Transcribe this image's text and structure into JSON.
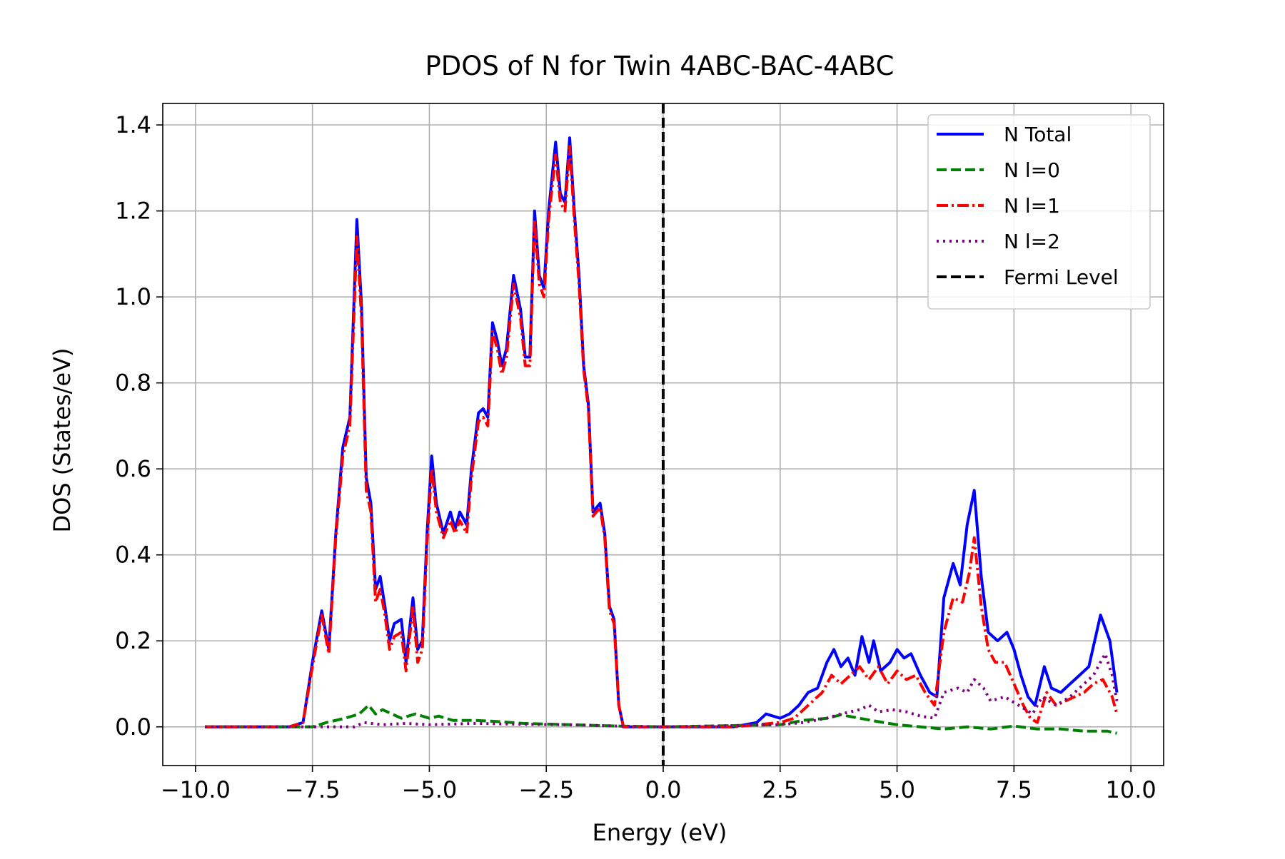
{
  "chart_data": {
    "type": "line",
    "title": "PDOS of N for Twin 4ABC-BAC-4ABC",
    "xlabel": "Energy (eV)",
    "ylabel": "DOS (States/eV)",
    "xlim": [
      -10.7,
      10.7
    ],
    "ylim": [
      -0.09,
      1.45
    ],
    "xticks": [
      -10.0,
      -7.5,
      -5.0,
      -2.5,
      0.0,
      2.5,
      5.0,
      7.5,
      10.0
    ],
    "xtick_labels": [
      "−10.0",
      "−7.5",
      "−5.0",
      "−2.5",
      "0.0",
      "2.5",
      "5.0",
      "7.5",
      "10.0"
    ],
    "yticks": [
      0.0,
      0.2,
      0.4,
      0.6,
      0.8,
      1.0,
      1.2,
      1.4
    ],
    "ytick_labels": [
      "0.0",
      "0.2",
      "0.4",
      "0.6",
      "0.8",
      "1.0",
      "1.2",
      "1.4"
    ],
    "grid": true,
    "legend_position": "top-right",
    "fermi_level": {
      "name": "Fermi Level",
      "x": 0.0,
      "color": "#000000",
      "style": "dashed"
    },
    "series": [
      {
        "name": "N Total",
        "color": "#0000ff",
        "style": "solid",
        "points": [
          [
            -9.8,
            0.0
          ],
          [
            -8.0,
            0.0
          ],
          [
            -7.7,
            0.01
          ],
          [
            -7.5,
            0.15
          ],
          [
            -7.3,
            0.27
          ],
          [
            -7.15,
            0.18
          ],
          [
            -7.0,
            0.45
          ],
          [
            -6.85,
            0.65
          ],
          [
            -6.7,
            0.72
          ],
          [
            -6.55,
            1.18
          ],
          [
            -6.45,
            0.98
          ],
          [
            -6.35,
            0.58
          ],
          [
            -6.25,
            0.52
          ],
          [
            -6.15,
            0.32
          ],
          [
            -6.05,
            0.35
          ],
          [
            -5.95,
            0.28
          ],
          [
            -5.85,
            0.2
          ],
          [
            -5.75,
            0.24
          ],
          [
            -5.6,
            0.25
          ],
          [
            -5.5,
            0.15
          ],
          [
            -5.35,
            0.3
          ],
          [
            -5.25,
            0.18
          ],
          [
            -5.15,
            0.2
          ],
          [
            -5.05,
            0.45
          ],
          [
            -4.95,
            0.63
          ],
          [
            -4.85,
            0.52
          ],
          [
            -4.7,
            0.45
          ],
          [
            -4.55,
            0.5
          ],
          [
            -4.45,
            0.46
          ],
          [
            -4.35,
            0.5
          ],
          [
            -4.2,
            0.47
          ],
          [
            -4.1,
            0.6
          ],
          [
            -3.95,
            0.73
          ],
          [
            -3.85,
            0.74
          ],
          [
            -3.75,
            0.72
          ],
          [
            -3.65,
            0.94
          ],
          [
            -3.55,
            0.9
          ],
          [
            -3.45,
            0.84
          ],
          [
            -3.35,
            0.88
          ],
          [
            -3.2,
            1.05
          ],
          [
            -3.05,
            0.97
          ],
          [
            -2.95,
            0.86
          ],
          [
            -2.85,
            0.86
          ],
          [
            -2.75,
            1.2
          ],
          [
            -2.65,
            1.05
          ],
          [
            -2.55,
            1.02
          ],
          [
            -2.45,
            1.2
          ],
          [
            -2.3,
            1.36
          ],
          [
            -2.2,
            1.24
          ],
          [
            -2.1,
            1.22
          ],
          [
            -2.0,
            1.37
          ],
          [
            -1.9,
            1.2
          ],
          [
            -1.8,
            1.05
          ],
          [
            -1.7,
            0.84
          ],
          [
            -1.6,
            0.75
          ],
          [
            -1.5,
            0.5
          ],
          [
            -1.35,
            0.52
          ],
          [
            -1.25,
            0.45
          ],
          [
            -1.15,
            0.28
          ],
          [
            -1.05,
            0.25
          ],
          [
            -0.95,
            0.05
          ],
          [
            -0.85,
            0.0
          ],
          [
            0.0,
            0.0
          ],
          [
            1.5,
            0.0
          ],
          [
            2.0,
            0.01
          ],
          [
            2.2,
            0.03
          ],
          [
            2.5,
            0.02
          ],
          [
            2.7,
            0.03
          ],
          [
            2.9,
            0.05
          ],
          [
            3.1,
            0.08
          ],
          [
            3.3,
            0.09
          ],
          [
            3.5,
            0.15
          ],
          [
            3.65,
            0.18
          ],
          [
            3.8,
            0.14
          ],
          [
            3.95,
            0.16
          ],
          [
            4.1,
            0.12
          ],
          [
            4.25,
            0.21
          ],
          [
            4.4,
            0.15
          ],
          [
            4.5,
            0.2
          ],
          [
            4.65,
            0.13
          ],
          [
            4.85,
            0.15
          ],
          [
            5.0,
            0.18
          ],
          [
            5.15,
            0.16
          ],
          [
            5.3,
            0.17
          ],
          [
            5.5,
            0.12
          ],
          [
            5.7,
            0.08
          ],
          [
            5.85,
            0.07
          ],
          [
            6.0,
            0.3
          ],
          [
            6.2,
            0.38
          ],
          [
            6.35,
            0.33
          ],
          [
            6.5,
            0.47
          ],
          [
            6.65,
            0.55
          ],
          [
            6.8,
            0.35
          ],
          [
            6.95,
            0.22
          ],
          [
            7.15,
            0.2
          ],
          [
            7.35,
            0.22
          ],
          [
            7.5,
            0.18
          ],
          [
            7.65,
            0.12
          ],
          [
            7.8,
            0.07
          ],
          [
            7.95,
            0.05
          ],
          [
            8.15,
            0.14
          ],
          [
            8.3,
            0.09
          ],
          [
            8.5,
            0.08
          ],
          [
            8.7,
            0.1
          ],
          [
            8.9,
            0.12
          ],
          [
            9.1,
            0.14
          ],
          [
            9.35,
            0.26
          ],
          [
            9.55,
            0.2
          ],
          [
            9.7,
            0.08
          ]
        ]
      },
      {
        "name": "N l=0",
        "color": "#008000",
        "style": "dashed",
        "points": [
          [
            -9.8,
            0.0
          ],
          [
            -7.5,
            0.0
          ],
          [
            -7.2,
            0.01
          ],
          [
            -6.8,
            0.02
          ],
          [
            -6.5,
            0.03
          ],
          [
            -6.3,
            0.05
          ],
          [
            -6.15,
            0.03
          ],
          [
            -6.0,
            0.04
          ],
          [
            -5.8,
            0.03
          ],
          [
            -5.6,
            0.02
          ],
          [
            -5.3,
            0.03
          ],
          [
            -5.0,
            0.02
          ],
          [
            -4.8,
            0.025
          ],
          [
            -4.5,
            0.015
          ],
          [
            -4.0,
            0.015
          ],
          [
            -3.5,
            0.012
          ],
          [
            -3.0,
            0.008
          ],
          [
            -2.0,
            0.005
          ],
          [
            -1.0,
            0.002
          ],
          [
            0.0,
            0.0
          ],
          [
            2.5,
            0.005
          ],
          [
            3.0,
            0.015
          ],
          [
            3.5,
            0.02
          ],
          [
            3.8,
            0.028
          ],
          [
            4.2,
            0.02
          ],
          [
            4.6,
            0.012
          ],
          [
            5.0,
            0.005
          ],
          [
            5.5,
            0.0
          ],
          [
            6.0,
            -0.005
          ],
          [
            6.5,
            0.0
          ],
          [
            7.0,
            -0.005
          ],
          [
            7.5,
            0.002
          ],
          [
            8.0,
            -0.005
          ],
          [
            8.5,
            -0.005
          ],
          [
            9.0,
            -0.01
          ],
          [
            9.5,
            -0.01
          ],
          [
            9.7,
            -0.015
          ]
        ]
      },
      {
        "name": "N l=1",
        "color": "#ff0000",
        "style": "dashdot",
        "points": [
          [
            -9.8,
            0.0
          ],
          [
            -8.0,
            0.0
          ],
          [
            -7.7,
            0.01
          ],
          [
            -7.5,
            0.14
          ],
          [
            -7.3,
            0.26
          ],
          [
            -7.15,
            0.17
          ],
          [
            -7.0,
            0.44
          ],
          [
            -6.85,
            0.63
          ],
          [
            -6.7,
            0.7
          ],
          [
            -6.55,
            1.14
          ],
          [
            -6.45,
            0.95
          ],
          [
            -6.35,
            0.55
          ],
          [
            -6.25,
            0.5
          ],
          [
            -6.15,
            0.29
          ],
          [
            -6.05,
            0.32
          ],
          [
            -5.95,
            0.26
          ],
          [
            -5.85,
            0.18
          ],
          [
            -5.75,
            0.21
          ],
          [
            -5.6,
            0.22
          ],
          [
            -5.5,
            0.13
          ],
          [
            -5.35,
            0.28
          ],
          [
            -5.25,
            0.15
          ],
          [
            -5.15,
            0.18
          ],
          [
            -5.05,
            0.43
          ],
          [
            -4.95,
            0.6
          ],
          [
            -4.85,
            0.5
          ],
          [
            -4.7,
            0.44
          ],
          [
            -4.55,
            0.48
          ],
          [
            -4.45,
            0.45
          ],
          [
            -4.35,
            0.48
          ],
          [
            -4.2,
            0.45
          ],
          [
            -4.1,
            0.58
          ],
          [
            -3.95,
            0.71
          ],
          [
            -3.85,
            0.72
          ],
          [
            -3.75,
            0.7
          ],
          [
            -3.65,
            0.92
          ],
          [
            -3.55,
            0.88
          ],
          [
            -3.45,
            0.82
          ],
          [
            -3.35,
            0.86
          ],
          [
            -3.2,
            1.03
          ],
          [
            -3.05,
            0.95
          ],
          [
            -2.95,
            0.84
          ],
          [
            -2.85,
            0.84
          ],
          [
            -2.75,
            1.18
          ],
          [
            -2.65,
            1.03
          ],
          [
            -2.55,
            1.0
          ],
          [
            -2.45,
            1.18
          ],
          [
            -2.3,
            1.33
          ],
          [
            -2.2,
            1.22
          ],
          [
            -2.1,
            1.2
          ],
          [
            -2.0,
            1.35
          ],
          [
            -1.9,
            1.18
          ],
          [
            -1.8,
            1.03
          ],
          [
            -1.7,
            0.83
          ],
          [
            -1.6,
            0.74
          ],
          [
            -1.5,
            0.49
          ],
          [
            -1.35,
            0.51
          ],
          [
            -1.25,
            0.44
          ],
          [
            -1.15,
            0.27
          ],
          [
            -1.05,
            0.24
          ],
          [
            -0.95,
            0.05
          ],
          [
            -0.85,
            0.0
          ],
          [
            0.0,
            0.0
          ],
          [
            1.5,
            0.0
          ],
          [
            2.0,
            0.005
          ],
          [
            2.5,
            0.01
          ],
          [
            2.8,
            0.02
          ],
          [
            3.0,
            0.04
          ],
          [
            3.2,
            0.06
          ],
          [
            3.4,
            0.08
          ],
          [
            3.6,
            0.12
          ],
          [
            3.8,
            0.1
          ],
          [
            4.0,
            0.12
          ],
          [
            4.2,
            0.14
          ],
          [
            4.4,
            0.11
          ],
          [
            4.6,
            0.14
          ],
          [
            4.8,
            0.1
          ],
          [
            5.0,
            0.13
          ],
          [
            5.2,
            0.11
          ],
          [
            5.4,
            0.12
          ],
          [
            5.6,
            0.08
          ],
          [
            5.8,
            0.05
          ],
          [
            6.0,
            0.22
          ],
          [
            6.2,
            0.3
          ],
          [
            6.4,
            0.29
          ],
          [
            6.55,
            0.36
          ],
          [
            6.65,
            0.44
          ],
          [
            6.8,
            0.28
          ],
          [
            6.95,
            0.18
          ],
          [
            7.1,
            0.15
          ],
          [
            7.3,
            0.15
          ],
          [
            7.5,
            0.1
          ],
          [
            7.7,
            0.05
          ],
          [
            7.85,
            0.02
          ],
          [
            8.0,
            0.01
          ],
          [
            8.2,
            0.08
          ],
          [
            8.4,
            0.05
          ],
          [
            8.6,
            0.06
          ],
          [
            8.8,
            0.07
          ],
          [
            9.0,
            0.08
          ],
          [
            9.2,
            0.1
          ],
          [
            9.4,
            0.11
          ],
          [
            9.6,
            0.07
          ],
          [
            9.7,
            0.03
          ]
        ]
      },
      {
        "name": "N l=2",
        "color": "#800080",
        "style": "dotted",
        "points": [
          [
            -9.8,
            0.0
          ],
          [
            -6.6,
            0.0
          ],
          [
            -6.4,
            0.01
          ],
          [
            -6.0,
            0.005
          ],
          [
            -5.5,
            0.008
          ],
          [
            -5.0,
            0.005
          ],
          [
            -4.0,
            0.008
          ],
          [
            -3.0,
            0.006
          ],
          [
            -2.0,
            0.005
          ],
          [
            -1.0,
            0.002
          ],
          [
            0.0,
            0.0
          ],
          [
            2.5,
            0.005
          ],
          [
            3.0,
            0.01
          ],
          [
            3.5,
            0.02
          ],
          [
            3.8,
            0.03
          ],
          [
            4.2,
            0.04
          ],
          [
            4.4,
            0.05
          ],
          [
            4.6,
            0.035
          ],
          [
            4.9,
            0.04
          ],
          [
            5.2,
            0.035
          ],
          [
            5.5,
            0.025
          ],
          [
            5.8,
            0.02
          ],
          [
            6.0,
            0.08
          ],
          [
            6.3,
            0.09
          ],
          [
            6.5,
            0.08
          ],
          [
            6.65,
            0.11
          ],
          [
            6.85,
            0.09
          ],
          [
            7.0,
            0.06
          ],
          [
            7.3,
            0.07
          ],
          [
            7.6,
            0.05
          ],
          [
            7.9,
            0.03
          ],
          [
            8.1,
            0.07
          ],
          [
            8.4,
            0.05
          ],
          [
            8.7,
            0.07
          ],
          [
            9.0,
            0.1
          ],
          [
            9.2,
            0.12
          ],
          [
            9.45,
            0.17
          ],
          [
            9.6,
            0.12
          ],
          [
            9.7,
            0.06
          ]
        ]
      }
    ]
  }
}
